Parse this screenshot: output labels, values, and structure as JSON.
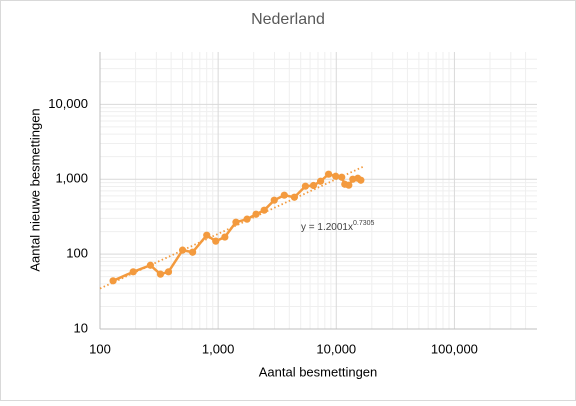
{
  "chart_data": {
    "type": "line",
    "title": "Nederland",
    "x_label": "Aantal besmettingen",
    "y_label": "Aantal nieuwe besmettingen",
    "log_x": true,
    "log_y": true,
    "grid": true,
    "minor_grid": true,
    "xlim": [
      100,
      500000
    ],
    "xticks": [
      {
        "value": 100,
        "label": "100"
      },
      {
        "value": 1000,
        "label": "1,000"
      },
      {
        "value": 10000,
        "label": "10,000"
      },
      {
        "value": 100000,
        "label": "100,000"
      }
    ],
    "ylim": [
      10,
      50000
    ],
    "yticks": [
      {
        "value": 10,
        "label": "10"
      },
      {
        "value": 100,
        "label": "100"
      },
      {
        "value": 1000,
        "label": "1,000"
      },
      {
        "value": 10000,
        "label": "10,000"
      }
    ],
    "series": [
      {
        "color": "#f39a3e",
        "x": [
          129,
          191,
          267,
          325,
          380,
          500,
          608,
          801,
          955,
          1140,
          1415,
          1757,
          2095,
          2455,
          2985,
          3630,
          4420,
          5480,
          6410,
          7360,
          8610,
          9890,
          11120,
          11800,
          12760,
          13800,
          15210,
          16140
        ],
        "values": [
          44,
          58,
          71,
          54,
          58,
          113,
          106,
          179,
          149,
          169,
          267,
          293,
          341,
          386,
          525,
          612,
          575,
          807,
          825,
          940,
          1167,
          1096,
          1063,
          857,
          832,
          1000,
          1031,
          970
        ]
      }
    ],
    "trendline": {
      "label": "y = 1.2001x",
      "exponent_label": "0.7305",
      "a": 1.2001,
      "b": 0.7305,
      "color": "#f39a3e"
    }
  }
}
